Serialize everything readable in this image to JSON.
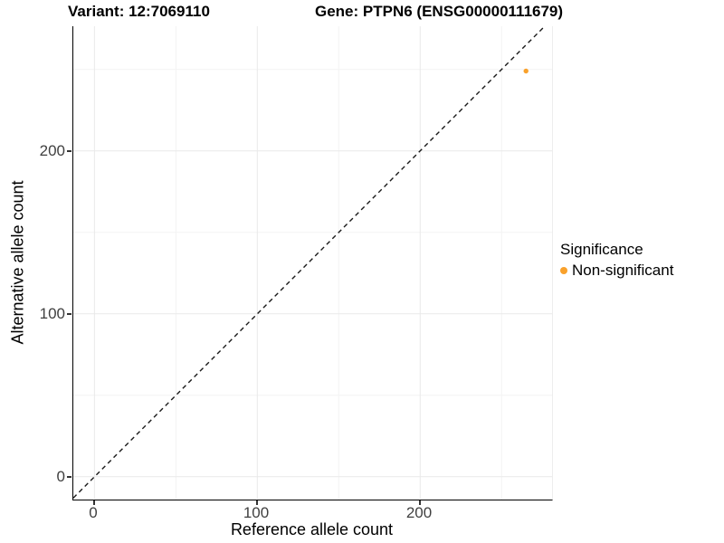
{
  "titles": {
    "variant": "Variant: 12:7069110",
    "gene": "Gene: PTPN6 (ENSG00000111679)"
  },
  "chart_data": {
    "type": "scatter",
    "title": "Variant: 12:7069110  |  Gene: PTPN6 (ENSG00000111679)",
    "xlabel": "Reference allele count",
    "ylabel": "Alternative allele count",
    "xlim": [
      -13,
      281
    ],
    "ylim": [
      -14,
      276.5
    ],
    "x_ticks": [
      0,
      100,
      200
    ],
    "y_ticks": [
      0,
      100,
      200
    ],
    "x_tick_labels": [
      "0",
      "100",
      "200"
    ],
    "y_tick_labels": [
      "0",
      "100",
      "200"
    ],
    "x_minor_ticks": [
      50,
      150,
      250
    ],
    "y_minor_ticks": [
      50,
      150,
      250
    ],
    "grid": true,
    "legend_position": "right",
    "reference_line": {
      "style": "dashed",
      "equation": "y = x",
      "color": "#1a1a1a"
    },
    "series": [
      {
        "name": "Non-significant",
        "color": "#F9A12B",
        "points": [
          {
            "x": 265,
            "y": 249
          }
        ]
      }
    ]
  },
  "legend": {
    "title": "Significance",
    "items": [
      {
        "label": "Non-significant",
        "color": "#F9A12B"
      }
    ]
  },
  "colors": {
    "grid_major": "#e9e9e9",
    "grid_minor": "#f3f3f3",
    "axis_line": "#000000",
    "tick_text": "#404040"
  }
}
